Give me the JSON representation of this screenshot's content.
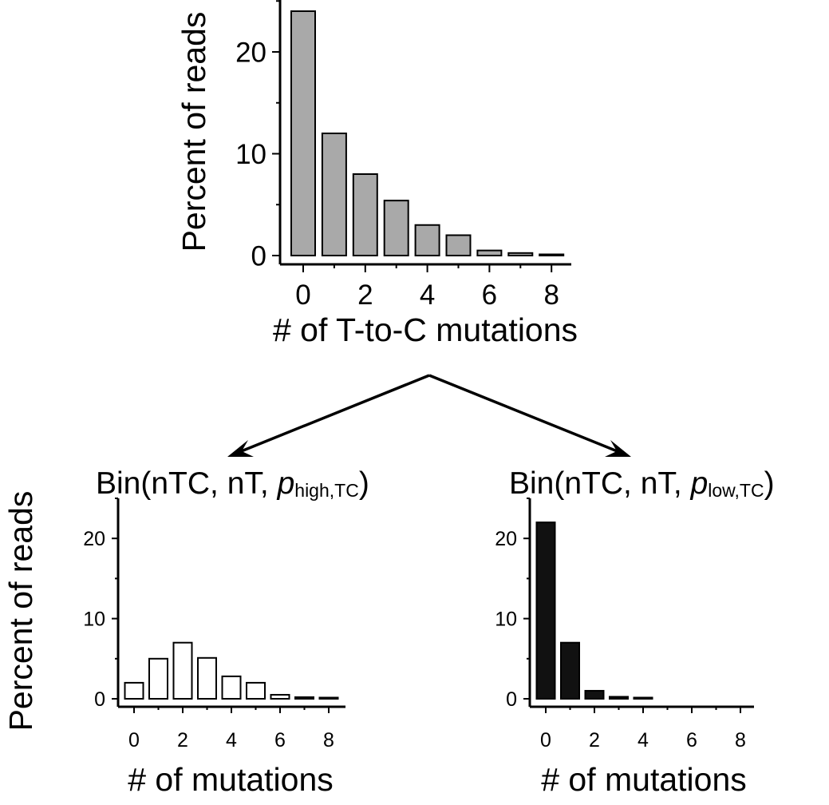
{
  "chart_data": [
    {
      "type": "bar",
      "panel": "top",
      "title": "",
      "xlabel": "# of T-to-C mutations",
      "ylabel": "Percent of reads",
      "x": [
        0,
        1,
        2,
        3,
        4,
        5,
        6,
        7,
        8
      ],
      "values": [
        24,
        12,
        8,
        5.4,
        3,
        2,
        0.5,
        0.25,
        0.08
      ],
      "xticks": [
        "0",
        "2",
        "4",
        "6",
        "8"
      ],
      "yticks": [
        "0",
        "10",
        "20"
      ],
      "ylim": [
        0,
        25
      ],
      "bar_color": "#a9a9a9",
      "grid": false
    },
    {
      "type": "bar",
      "panel": "bottom-left",
      "title_prefix": "Bin(nTC, nT, ",
      "title_p": "p",
      "title_sub": "high,TC",
      "title_suffix": ")",
      "xlabel": "# of mutations",
      "ylabel": "Percent of reads",
      "x": [
        0,
        1,
        2,
        3,
        4,
        5,
        6,
        7,
        8
      ],
      "values": [
        2,
        5,
        7,
        5.1,
        2.8,
        2,
        0.5,
        0.2,
        0.08
      ],
      "xticks": [
        "0",
        "2",
        "4",
        "6",
        "8"
      ],
      "yticks": [
        "0",
        "10",
        "20"
      ],
      "ylim": [
        0,
        25
      ],
      "bar_color": "#ffffff",
      "grid": false
    },
    {
      "type": "bar",
      "panel": "bottom-right",
      "title_prefix": "Bin(nTC, nT, ",
      "title_p": "p",
      "title_sub": "low,TC",
      "title_suffix": ")",
      "xlabel": "# of mutations",
      "ylabel": "",
      "x": [
        0,
        1,
        2,
        3,
        4,
        5,
        6,
        7,
        8
      ],
      "values": [
        22,
        7,
        1,
        0.25,
        0.15,
        0,
        0,
        0,
        0
      ],
      "xticks": [
        "0",
        "2",
        "4",
        "6",
        "8"
      ],
      "yticks": [
        "0",
        "10",
        "20"
      ],
      "ylim": [
        0,
        25
      ],
      "bar_color": "#111111",
      "grid": false
    }
  ]
}
